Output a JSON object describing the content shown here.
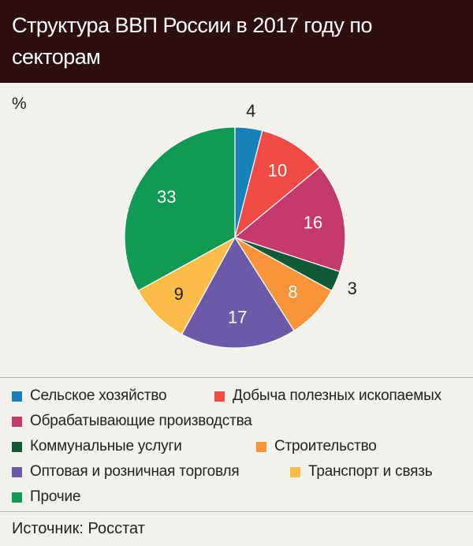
{
  "header": {
    "title": "Структура ВВП России в 2017 году по секторам"
  },
  "unit_label": "%",
  "source": "Источник: Росстат",
  "chart_data": {
    "type": "pie",
    "title": "Структура ВВП России в 2017 году по секторам",
    "unit": "%",
    "start_angle_deg": 0,
    "direction": "clockwise",
    "slices": [
      {
        "label": "Сельское хозяйство",
        "value": 4,
        "color": "#1682b8"
      },
      {
        "label": "Добыча полезных ископаемых",
        "value": 10,
        "color": "#f04a45"
      },
      {
        "label": "Обрабатывающие производства",
        "value": 16,
        "color": "#c43a6d"
      },
      {
        "label": "Коммунальные услуги",
        "value": 3,
        "color": "#115a37"
      },
      {
        "label": "Строительство",
        "value": 8,
        "color": "#f7943a"
      },
      {
        "label": "Оптовая и розничная торговля",
        "value": 17,
        "color": "#6c5aa8"
      },
      {
        "label": "Транспорт и связь",
        "value": 9,
        "color": "#fbbd48"
      },
      {
        "label": "Прочие",
        "value": 33,
        "color": "#119a53"
      }
    ],
    "legend_placement": "bottom"
  }
}
